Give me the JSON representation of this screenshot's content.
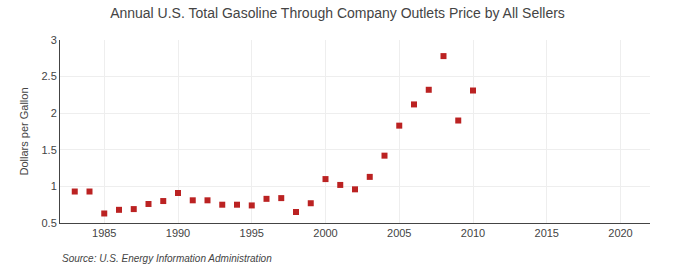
{
  "chart_data": {
    "type": "scatter",
    "title": "Annual U.S. Total Gasoline Through Company Outlets Price by All Sellers",
    "ylabel": "Dollars per Gallon",
    "annotation": "Source: U.S. Energy Information Administration",
    "x": [
      1983,
      1984,
      1985,
      1986,
      1987,
      1988,
      1989,
      1990,
      1991,
      1992,
      1993,
      1994,
      1995,
      1996,
      1997,
      1998,
      1999,
      2000,
      2001,
      2002,
      2003,
      2004,
      2005,
      2006,
      2007,
      2008,
      2009,
      2010
    ],
    "values": [
      0.93,
      0.93,
      0.63,
      0.68,
      0.69,
      0.76,
      0.8,
      0.91,
      0.81,
      0.81,
      0.75,
      0.75,
      0.74,
      0.83,
      0.84,
      0.65,
      0.77,
      1.1,
      1.02,
      0.96,
      1.13,
      1.42,
      1.83,
      2.12,
      2.32,
      2.78,
      1.9,
      2.31
    ],
    "color": "#bb2222",
    "marker": "square",
    "xlim": [
      1982,
      2022
    ],
    "ylim": [
      0.5,
      3.0
    ],
    "xticks": [
      1985,
      1990,
      1995,
      2000,
      2005,
      2010,
      2015,
      2020
    ],
    "yticks": [
      0.5,
      1.0,
      1.5,
      2.0,
      2.5,
      3.0
    ],
    "grid": true
  }
}
